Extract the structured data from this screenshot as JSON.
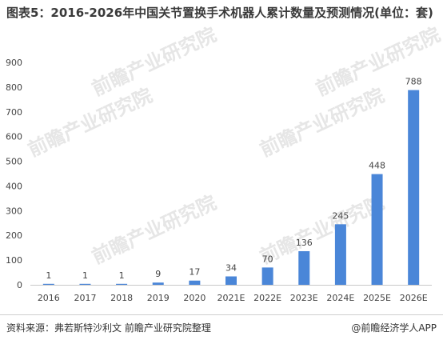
{
  "title": "图表5：2016-2026年中国关节置换手术机器人累计数量及预测情况(单位：套)",
  "footer": {
    "source": "资料来源：弗若斯特沙利文 前瞻产业研究院整理",
    "credit": "@前瞻经济学人APP"
  },
  "watermark": "前瞻产业研究院",
  "colors": {
    "bar": "#4a86d8",
    "axis": "#c8c8c8",
    "text": "#444444"
  },
  "chart_data": {
    "type": "bar",
    "title": "图表5：2016-2026年中国关节置换手术机器人累计数量及预测情况(单位：套)",
    "xlabel": "",
    "ylabel": "",
    "ylim": [
      0,
      900
    ],
    "yticks": [
      0,
      100,
      200,
      300,
      400,
      500,
      600,
      700,
      800,
      900
    ],
    "grid": false,
    "categories": [
      "2016",
      "2017",
      "2018",
      "2019",
      "2020",
      "2021E",
      "2022E",
      "2023E",
      "2024E",
      "2025E",
      "2026E"
    ],
    "values": [
      1,
      1,
      1,
      9,
      17,
      34,
      70,
      136,
      245,
      448,
      788
    ]
  }
}
